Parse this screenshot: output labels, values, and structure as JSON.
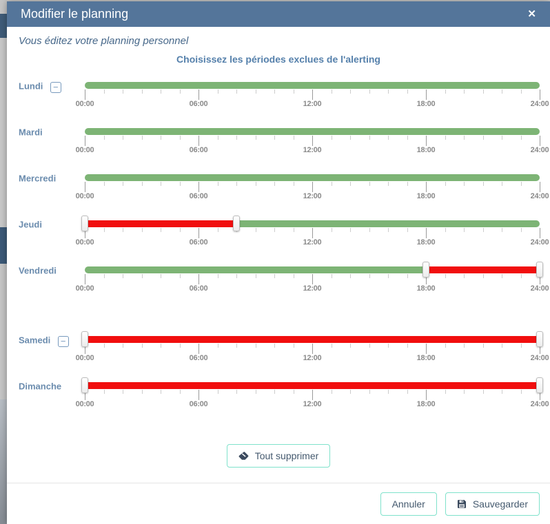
{
  "modal": {
    "title": "Modifier le planning",
    "subtitle": "Vous éditez votre planning personnel",
    "heading": "Choisissez les périodes exclues de l'alerting"
  },
  "icons": {
    "close": "✕",
    "collapse": "−",
    "clear_all": "eraser-icon",
    "save": "save-icon"
  },
  "slider": {
    "hours_span": 24,
    "tick_labels": [
      "00:00",
      "06:00",
      "12:00",
      "18:00",
      "24:00"
    ]
  },
  "days": [
    {
      "name": "Lundi",
      "collapse_button": true,
      "excluded": []
    },
    {
      "name": "Mardi",
      "collapse_button": false,
      "excluded": []
    },
    {
      "name": "Mercredi",
      "collapse_button": false,
      "excluded": []
    },
    {
      "name": "Jeudi",
      "collapse_button": false,
      "excluded": [
        {
          "from": 0,
          "to": 8
        }
      ]
    },
    {
      "name": "Vendredi",
      "collapse_button": false,
      "excluded": [
        {
          "from": 18,
          "to": 24
        }
      ],
      "extra_gap_after": true
    },
    {
      "name": "Samedi",
      "collapse_button": true,
      "excluded": [
        {
          "from": 0,
          "to": 24
        }
      ]
    },
    {
      "name": "Dimanche",
      "collapse_button": false,
      "excluded": [
        {
          "from": 0,
          "to": 24
        }
      ]
    }
  ],
  "buttons": {
    "clear_all": "Tout supprimer",
    "cancel": "Annuler",
    "save": "Sauvegarder"
  },
  "colors": {
    "header_bg": "#54759a",
    "available_green": "#7db475",
    "excluded_red": "#f10e0e",
    "accent_teal": "#7fe2cb",
    "day_label_blue": "#6b8cae"
  }
}
